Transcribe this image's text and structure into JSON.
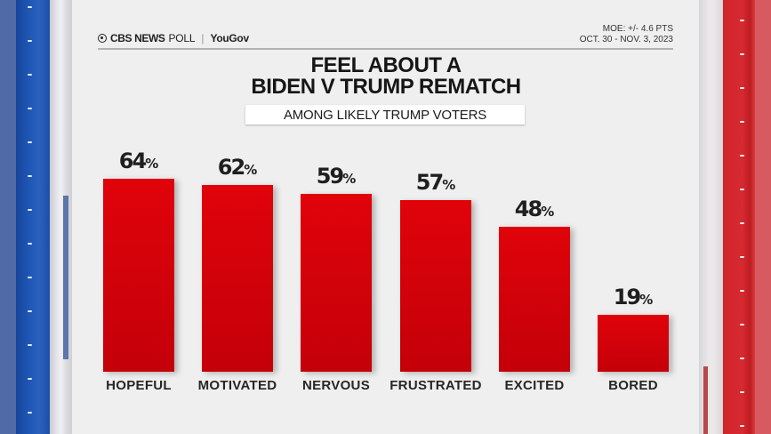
{
  "header": {
    "brand_network": "CBS NEWS",
    "brand_poll": "POLL",
    "brand_partner": "YouGov",
    "moe": "MOE: +/- 4.6 PTS",
    "dates": "OCT. 30 - NOV. 3, 2023"
  },
  "title_line1": "FEEL ABOUT A",
  "title_line2": "BIDEN V TRUMP REMATCH",
  "subtitle": "AMONG LIKELY TRUMP VOTERS",
  "colors": {
    "bar": "#d4020a",
    "left_pillar": "#1f57b6",
    "right_pillar": "#d1242b",
    "background": "#efefef"
  },
  "chart_data": {
    "type": "bar",
    "title": "Feel about a Biden v Trump rematch",
    "subtitle": "Among likely Trump voters",
    "categories": [
      "HOPEFUL",
      "MOTIVATED",
      "NERVOUS",
      "FRUSTRATED",
      "EXCITED",
      "BORED"
    ],
    "values": [
      64,
      62,
      59,
      57,
      48,
      19
    ],
    "value_labels": [
      "64%",
      "62%",
      "59%",
      "57%",
      "48%",
      "19%"
    ],
    "xlabel": "",
    "ylabel": "",
    "ylim": [
      0,
      100
    ],
    "unit": "%",
    "grid": false,
    "legend": "none",
    "source": "CBS News Poll | YouGov",
    "moe": "+/- 4.6 pts",
    "field_dates": "Oct. 30 - Nov. 3, 2023"
  }
}
